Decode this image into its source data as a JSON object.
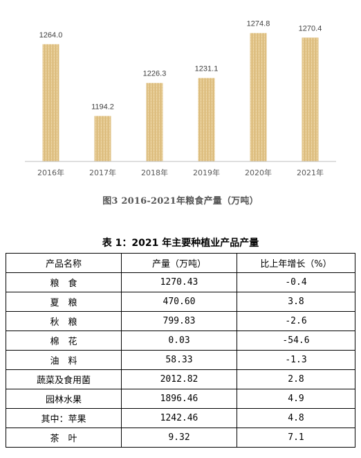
{
  "chart_data": {
    "type": "bar",
    "categories": [
      "2016年",
      "2017年",
      "2018年",
      "2019年",
      "2020年",
      "2021年"
    ],
    "values": [
      1264.0,
      1194.2,
      1226.3,
      1231.1,
      1274.8,
      1270.4
    ],
    "value_labels": [
      "1264.0",
      "1194.2",
      "1226.3",
      "1231.1",
      "1274.8",
      "1270.4"
    ],
    "ylim": [
      1150,
      1280
    ],
    "grid": false,
    "bar_color": "#E3C78D"
  },
  "figure_caption": "图3  2016-2021年粮食产量（万吨）",
  "table": {
    "title": "表 1：2021 年主要种植业产品产量",
    "headers": [
      "产品名称",
      "产量（万吨）",
      "比上年增长（%）"
    ],
    "rows": [
      [
        "粮　食",
        "1270.43",
        "-0.4"
      ],
      [
        "夏　粮",
        "470.60",
        "3.8"
      ],
      [
        "秋　粮",
        "799.83",
        "-2.6"
      ],
      [
        "棉　花",
        "0.03",
        "-54.6"
      ],
      [
        "油　料",
        "58.33",
        "-1.3"
      ],
      [
        "蔬菜及食用菌",
        "2012.82",
        "2.8"
      ],
      [
        "园林水果",
        "1896.46",
        "4.9"
      ],
      [
        "其中：苹果",
        "1242.46",
        "4.8"
      ],
      [
        "茶　叶",
        "9.32",
        "7.1"
      ]
    ]
  }
}
